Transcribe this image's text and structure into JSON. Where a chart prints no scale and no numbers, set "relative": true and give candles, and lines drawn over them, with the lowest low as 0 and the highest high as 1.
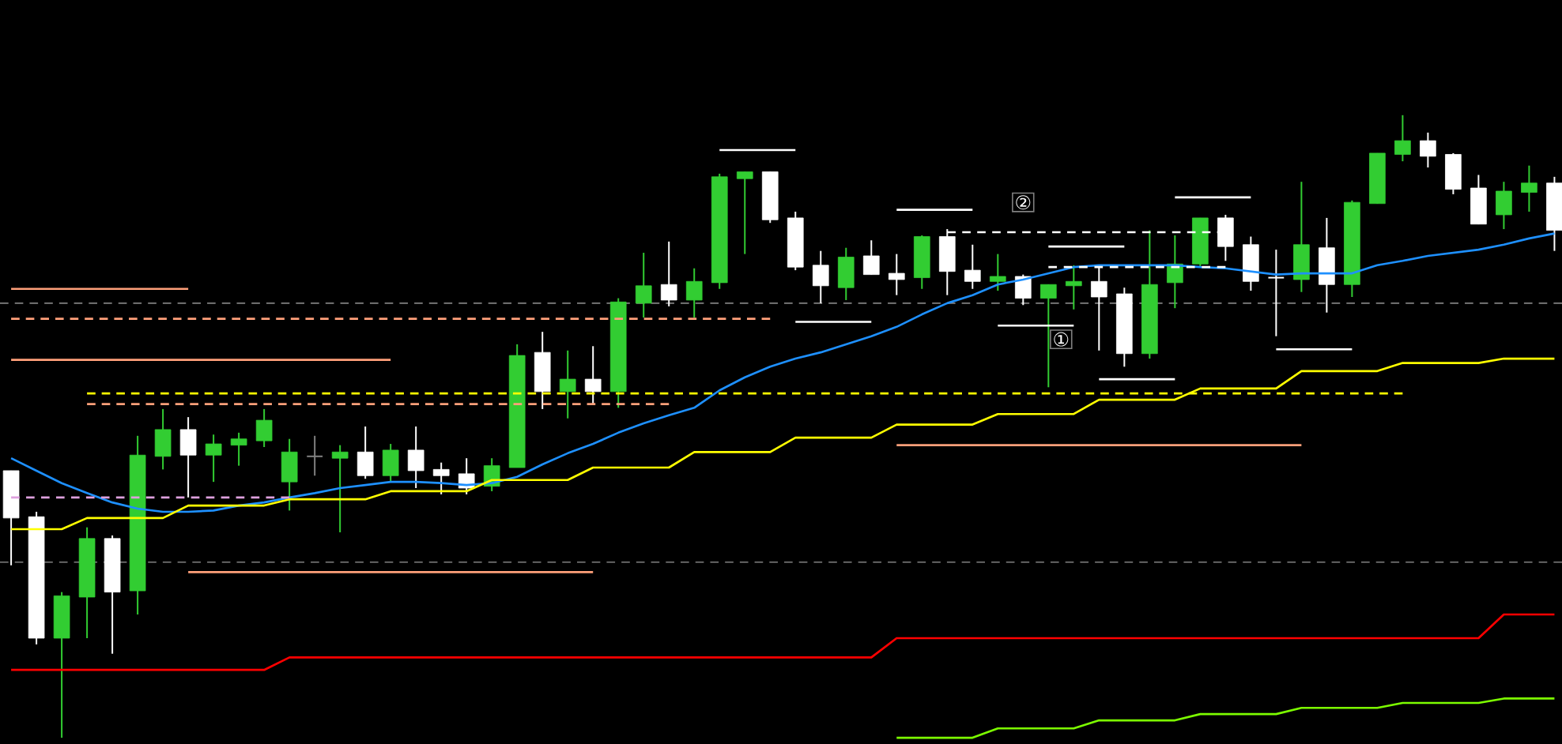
{
  "chart_data": {
    "type": "candlestick",
    "relative": true,
    "categories": [
      null,
      null,
      null,
      null,
      null,
      null,
      null,
      null,
      null,
      null,
      null,
      null,
      null,
      null,
      null,
      null,
      null,
      null,
      null,
      null,
      null,
      null,
      null,
      null,
      null,
      null,
      null,
      null,
      null,
      null,
      null,
      null,
      null,
      null,
      null,
      null,
      null,
      null,
      null,
      null,
      null,
      null,
      null,
      null,
      null,
      null,
      null,
      null,
      null,
      null,
      null,
      null,
      null,
      null,
      null,
      null,
      null,
      null,
      null,
      null,
      null,
      null
    ],
    "ohlc": [
      [
        0.429,
        0.429,
        0.277,
        0.353
      ],
      [
        0.355,
        0.363,
        0.15,
        0.16
      ],
      [
        0.16,
        0.234,
        0.0,
        0.228
      ],
      [
        0.226,
        0.338,
        0.16,
        0.32
      ],
      [
        0.32,
        0.325,
        0.135,
        0.234
      ],
      [
        0.236,
        0.485,
        0.198,
        0.454
      ],
      [
        0.452,
        0.528,
        0.431,
        0.495
      ],
      [
        0.495,
        0.515,
        0.386,
        0.454
      ],
      [
        0.454,
        0.487,
        0.411,
        0.472
      ],
      [
        0.47,
        0.49,
        0.437,
        0.48
      ],
      [
        0.477,
        0.528,
        0.467,
        0.51
      ],
      [
        0.411,
        0.48,
        0.365,
        0.459
      ],
      [
        0.452,
        0.485,
        0.421,
        0.452
      ],
      [
        0.449,
        0.47,
        0.33,
        0.459
      ],
      [
        0.459,
        0.5,
        0.416,
        0.421
      ],
      [
        0.421,
        0.472,
        0.411,
        0.462
      ],
      [
        0.462,
        0.5,
        0.401,
        0.429
      ],
      [
        0.431,
        0.442,
        0.391,
        0.421
      ],
      [
        0.424,
        0.449,
        0.391,
        0.401
      ],
      [
        0.404,
        0.449,
        0.396,
        0.437
      ],
      [
        0.434,
        0.632,
        0.434,
        0.614
      ],
      [
        0.619,
        0.652,
        0.528,
        0.556
      ],
      [
        0.556,
        0.622,
        0.513,
        0.576
      ],
      [
        0.576,
        0.629,
        0.536,
        0.556
      ],
      [
        0.556,
        0.706,
        0.53,
        0.7
      ],
      [
        0.698,
        0.779,
        0.675,
        0.726
      ],
      [
        0.728,
        0.797,
        0.693,
        0.703
      ],
      [
        0.703,
        0.754,
        0.675,
        0.733
      ],
      [
        0.731,
        0.906,
        0.721,
        0.901
      ],
      [
        0.898,
        0.909,
        0.777,
        0.909
      ],
      [
        0.909,
        0.909,
        0.827,
        0.832
      ],
      [
        0.835,
        0.845,
        0.751,
        0.756
      ],
      [
        0.759,
        0.782,
        0.698,
        0.726
      ],
      [
        0.723,
        0.787,
        0.703,
        0.772
      ],
      [
        0.774,
        0.799,
        0.744,
        0.744
      ],
      [
        0.746,
        0.777,
        0.711,
        0.736
      ],
      [
        0.739,
        0.807,
        0.721,
        0.805
      ],
      [
        0.805,
        0.817,
        0.711,
        0.749
      ],
      [
        0.751,
        0.792,
        0.721,
        0.733
      ],
      [
        0.733,
        0.777,
        0.718,
        0.741
      ],
      [
        0.741,
        0.744,
        0.695,
        0.706
      ],
      [
        0.706,
        0.728,
        0.563,
        0.728
      ],
      [
        0.726,
        0.759,
        0.688,
        0.733
      ],
      [
        0.733,
        0.756,
        0.622,
        0.708
      ],
      [
        0.713,
        0.723,
        0.596,
        0.617
      ],
      [
        0.617,
        0.815,
        0.609,
        0.728
      ],
      [
        0.731,
        0.807,
        0.69,
        0.761
      ],
      [
        0.761,
        0.835,
        0.756,
        0.835
      ],
      [
        0.835,
        0.84,
        0.766,
        0.789
      ],
      [
        0.792,
        0.805,
        0.718,
        0.733
      ],
      [
        0.739,
        0.784,
        0.645,
        0.739
      ],
      [
        0.736,
        0.893,
        0.716,
        0.792
      ],
      [
        0.787,
        0.835,
        0.683,
        0.728
      ],
      [
        0.728,
        0.863,
        0.708,
        0.86
      ],
      [
        0.858,
        0.939,
        0.858,
        0.939
      ],
      [
        0.937,
        1.0,
        0.926,
        0.959
      ],
      [
        0.959,
        0.972,
        0.916,
        0.934
      ],
      [
        0.937,
        0.939,
        0.873,
        0.881
      ],
      [
        0.883,
        0.904,
        0.825,
        0.825
      ],
      [
        0.84,
        0.893,
        0.817,
        0.878
      ],
      [
        0.876,
        0.919,
        0.845,
        0.891
      ],
      [
        0.891,
        0.901,
        0.782,
        0.815
      ]
    ],
    "colors": [
      "#ffffff",
      "#ffffff",
      "#32cd32",
      "#32cd32",
      "#ffffff",
      "#32cd32",
      "#32cd32",
      "#ffffff",
      "#32cd32",
      "#32cd32",
      "#32cd32",
      "#32cd32",
      "#808080",
      "#32cd32",
      "#ffffff",
      "#32cd32",
      "#ffffff",
      "#ffffff",
      "#ffffff",
      "#32cd32",
      "#32cd32",
      "#ffffff",
      "#32cd32",
      "#ffffff",
      "#32cd32",
      "#32cd32",
      "#ffffff",
      "#32cd32",
      "#32cd32",
      "#32cd32",
      "#ffffff",
      "#ffffff",
      "#ffffff",
      "#32cd32",
      "#ffffff",
      "#ffffff",
      "#32cd32",
      "#ffffff",
      "#ffffff",
      "#32cd32",
      "#ffffff",
      "#32cd32",
      "#32cd32",
      "#ffffff",
      "#ffffff",
      "#32cd32",
      "#32cd32",
      "#32cd32",
      "#ffffff",
      "#ffffff",
      "#ffffff",
      "#32cd32",
      "#ffffff",
      "#32cd32",
      "#32cd32",
      "#32cd32",
      "#ffffff",
      "#ffffff",
      "#ffffff",
      "#32cd32",
      "#32cd32",
      "#ffffff"
    ],
    "series": [
      {
        "type": "line",
        "color": "#1e90ff",
        "line_style": "solid",
        "values": [
          0.449,
          0.429,
          0.409,
          0.393,
          0.378,
          0.368,
          0.363,
          0.363,
          0.365,
          0.373,
          0.378,
          0.386,
          0.393,
          0.401,
          0.406,
          0.411,
          0.411,
          0.409,
          0.406,
          0.409,
          0.419,
          0.439,
          0.457,
          0.472,
          0.49,
          0.505,
          0.518,
          0.53,
          0.558,
          0.579,
          0.596,
          0.609,
          0.619,
          0.632,
          0.645,
          0.66,
          0.68,
          0.698,
          0.711,
          0.728,
          0.736,
          0.746,
          0.756,
          0.759,
          0.759,
          0.759,
          0.759,
          0.756,
          0.754,
          0.749,
          0.744,
          0.746,
          0.746,
          0.746,
          0.759,
          0.766,
          0.774,
          0.779,
          0.784,
          0.792,
          0.802,
          0.81
        ]
      },
      {
        "type": "line",
        "color": "#ffff00",
        "line_style": "solid",
        "values": [
          0.335,
          0.335,
          0.335,
          0.353,
          0.353,
          0.353,
          0.353,
          0.373,
          0.373,
          0.373,
          0.373,
          0.383,
          0.383,
          0.383,
          0.383,
          0.396,
          0.396,
          0.396,
          0.396,
          0.414,
          0.414,
          0.414,
          0.414,
          0.434,
          0.434,
          0.434,
          0.434,
          0.459,
          0.459,
          0.459,
          0.459,
          0.482,
          0.482,
          0.482,
          0.482,
          0.503,
          0.503,
          0.503,
          0.503,
          0.52,
          0.52,
          0.52,
          0.52,
          0.543,
          0.543,
          0.543,
          0.543,
          0.561,
          0.561,
          0.561,
          0.561,
          0.589,
          0.589,
          0.589,
          0.589,
          0.602,
          0.602,
          0.602,
          0.602,
          0.609,
          0.609,
          0.609
        ]
      },
      {
        "type": "line",
        "color": "#ff0000",
        "line_style": "solid",
        "values": [
          0.109,
          0.109,
          0.109,
          0.109,
          0.109,
          0.109,
          0.109,
          0.109,
          0.109,
          0.109,
          0.109,
          0.129,
          0.129,
          0.129,
          0.129,
          0.129,
          0.129,
          0.129,
          0.129,
          0.129,
          0.129,
          0.129,
          0.129,
          0.129,
          0.129,
          0.129,
          0.129,
          0.129,
          0.129,
          0.129,
          0.129,
          0.129,
          0.129,
          0.129,
          0.129,
          0.16,
          0.16,
          0.16,
          0.16,
          0.16,
          0.16,
          0.16,
          0.16,
          0.16,
          0.16,
          0.16,
          0.16,
          0.16,
          0.16,
          0.16,
          0.16,
          0.16,
          0.16,
          0.16,
          0.16,
          0.16,
          0.16,
          0.16,
          0.16,
          0.198,
          0.198,
          0.198
        ]
      },
      {
        "type": "line",
        "color": "#7cfc00",
        "line_style": "solid",
        "values": [
          null,
          null,
          null,
          null,
          null,
          null,
          null,
          null,
          null,
          null,
          null,
          null,
          null,
          null,
          null,
          null,
          null,
          null,
          null,
          null,
          null,
          null,
          null,
          null,
          null,
          null,
          null,
          null,
          null,
          null,
          null,
          null,
          null,
          null,
          null,
          0.0,
          0.0,
          0.0,
          0.0,
          0.015,
          0.015,
          0.015,
          0.015,
          0.028,
          0.028,
          0.028,
          0.028,
          0.038,
          0.038,
          0.038,
          0.038,
          0.048,
          0.048,
          0.048,
          0.048,
          0.056,
          0.056,
          0.056,
          0.056,
          0.063,
          0.063,
          0.063
        ]
      },
      {
        "type": "line",
        "color": "#ffa07a",
        "line_style": "solid",
        "values": [
          0.721,
          0.721,
          0.721,
          0.721,
          0.721,
          0.721,
          0.721,
          0.721,
          null,
          null,
          null,
          null,
          null,
          null,
          null,
          null,
          null,
          null,
          null,
          null,
          null,
          null,
          null,
          null,
          null,
          null,
          null,
          null,
          null,
          null,
          null,
          null,
          null,
          null,
          null,
          null,
          null,
          null,
          null,
          null,
          null,
          null,
          null,
          null,
          null,
          null,
          null,
          null,
          null,
          null,
          null,
          null,
          null,
          null,
          null,
          null,
          null,
          null,
          null,
          null,
          null,
          null
        ]
      },
      {
        "type": "line",
        "color": "#ffa07a",
        "line_style": "solid",
        "values": [
          0.607,
          0.607,
          0.607,
          0.607,
          0.607,
          0.607,
          0.607,
          0.607,
          0.607,
          0.607,
          0.607,
          0.607,
          0.607,
          0.607,
          0.607,
          0.607,
          null,
          null,
          null,
          null,
          null,
          null,
          null,
          null,
          null,
          null,
          null,
          null,
          null,
          null,
          null,
          null,
          null,
          null,
          null,
          null,
          null,
          null,
          null,
          null,
          null,
          null,
          null,
          null,
          null,
          null,
          null,
          null,
          null,
          null,
          null,
          null,
          null,
          null,
          null,
          null,
          null,
          null,
          null,
          null,
          null,
          null
        ]
      },
      {
        "type": "line",
        "color": "#ffa07a",
        "line_style": "solid",
        "values": [
          null,
          null,
          null,
          null,
          null,
          null,
          null,
          0.266,
          0.266,
          0.266,
          0.266,
          0.266,
          0.266,
          0.266,
          0.266,
          0.266,
          0.266,
          0.266,
          0.266,
          0.266,
          0.266,
          0.266,
          0.266,
          0.266,
          null,
          null,
          null,
          null,
          null,
          null,
          null,
          null,
          null,
          null,
          null,
          null,
          null,
          null,
          null,
          null,
          null,
          null,
          null,
          null,
          null,
          null,
          null,
          null,
          null,
          null,
          null,
          null,
          null,
          null,
          null,
          null,
          null,
          null,
          null,
          null,
          null,
          null
        ]
      },
      {
        "type": "line",
        "color": "#ffa07a",
        "line_style": "solid",
        "values": [
          null,
          null,
          null,
          null,
          null,
          null,
          null,
          null,
          null,
          null,
          null,
          null,
          null,
          null,
          null,
          null,
          null,
          null,
          null,
          null,
          null,
          null,
          null,
          null,
          null,
          null,
          null,
          null,
          null,
          null,
          null,
          null,
          null,
          null,
          null,
          0.47,
          0.47,
          0.47,
          0.47,
          0.47,
          0.47,
          0.47,
          0.47,
          0.47,
          0.47,
          0.47,
          0.47,
          0.47,
          0.47,
          0.47,
          0.47,
          0.47,
          null,
          null,
          null,
          null,
          null,
          null,
          null,
          null,
          null,
          null
        ]
      },
      {
        "type": "line",
        "color": "#ffffff",
        "line_style": "solid",
        "values": [
          null,
          null,
          null,
          null,
          null,
          null,
          null,
          null,
          null,
          null,
          null,
          null,
          null,
          null,
          null,
          null,
          null,
          null,
          null,
          null,
          null,
          null,
          null,
          null,
          null,
          null,
          null,
          null,
          0.944,
          0.944,
          0.944,
          0.944,
          null,
          null,
          null,
          null,
          null,
          null,
          null,
          null,
          null,
          null,
          null,
          null,
          null,
          null,
          null,
          null,
          null,
          null,
          null,
          null,
          null,
          null,
          null,
          null,
          null,
          null,
          null,
          null,
          null,
          null
        ]
      },
      {
        "type": "line",
        "color": "#ffffff",
        "line_style": "solid",
        "values": [
          null,
          null,
          null,
          null,
          null,
          null,
          null,
          null,
          null,
          null,
          null,
          null,
          null,
          null,
          null,
          null,
          null,
          null,
          null,
          null,
          null,
          null,
          null,
          null,
          null,
          null,
          null,
          null,
          null,
          null,
          null,
          0.668,
          0.668,
          0.668,
          0.668,
          null,
          null,
          null,
          null,
          null,
          null,
          null,
          null,
          null,
          null,
          null,
          null,
          null,
          null,
          null,
          null,
          null,
          null,
          null,
          null,
          null,
          null,
          null,
          null,
          null,
          null,
          null
        ]
      },
      {
        "type": "line",
        "color": "#ffffff",
        "line_style": "solid",
        "values": [
          null,
          null,
          null,
          null,
          null,
          null,
          null,
          null,
          null,
          null,
          null,
          null,
          null,
          null,
          null,
          null,
          null,
          null,
          null,
          null,
          null,
          null,
          null,
          null,
          null,
          null,
          null,
          null,
          null,
          null,
          null,
          null,
          null,
          null,
          null,
          0.848,
          0.848,
          0.848,
          0.848,
          null,
          null,
          null,
          null,
          null,
          null,
          null,
          null,
          null,
          null,
          null,
          null,
          null,
          null,
          null,
          null,
          null,
          null,
          null,
          null,
          null,
          null,
          null
        ]
      },
      {
        "type": "line",
        "color": "#ffffff",
        "line_style": "solid",
        "values": [
          null,
          null,
          null,
          null,
          null,
          null,
          null,
          null,
          null,
          null,
          null,
          null,
          null,
          null,
          null,
          null,
          null,
          null,
          null,
          null,
          null,
          null,
          null,
          null,
          null,
          null,
          null,
          null,
          null,
          null,
          null,
          null,
          null,
          null,
          null,
          null,
          null,
          null,
          null,
          0.662,
          0.662,
          0.662,
          0.662,
          null,
          null,
          null,
          null,
          null,
          null,
          null,
          null,
          null,
          null,
          null,
          null,
          null,
          null,
          null,
          null,
          null,
          null,
          null
        ]
      },
      {
        "type": "line",
        "color": "#ffffff",
        "line_style": "solid",
        "values": [
          null,
          null,
          null,
          null,
          null,
          null,
          null,
          null,
          null,
          null,
          null,
          null,
          null,
          null,
          null,
          null,
          null,
          null,
          null,
          null,
          null,
          null,
          null,
          null,
          null,
          null,
          null,
          null,
          null,
          null,
          null,
          null,
          null,
          null,
          null,
          null,
          null,
          null,
          null,
          null,
          null,
          0.789,
          0.789,
          0.789,
          0.789,
          null,
          null,
          null,
          null,
          null,
          null,
          null,
          null,
          null,
          null,
          null,
          null,
          null,
          null,
          null,
          null,
          null
        ]
      },
      {
        "type": "line",
        "color": "#ffffff",
        "line_style": "solid",
        "values": [
          null,
          null,
          null,
          null,
          null,
          null,
          null,
          null,
          null,
          null,
          null,
          null,
          null,
          null,
          null,
          null,
          null,
          null,
          null,
          null,
          null,
          null,
          null,
          null,
          null,
          null,
          null,
          null,
          null,
          null,
          null,
          null,
          null,
          null,
          null,
          null,
          null,
          null,
          null,
          null,
          null,
          null,
          null,
          0.576,
          0.576,
          0.576,
          0.576,
          null,
          null,
          null,
          null,
          null,
          null,
          null,
          null,
          null,
          null,
          null,
          null,
          null,
          null,
          null
        ]
      },
      {
        "type": "line",
        "color": "#ffffff",
        "line_style": "solid",
        "values": [
          null,
          null,
          null,
          null,
          null,
          null,
          null,
          null,
          null,
          null,
          null,
          null,
          null,
          null,
          null,
          null,
          null,
          null,
          null,
          null,
          null,
          null,
          null,
          null,
          null,
          null,
          null,
          null,
          null,
          null,
          null,
          null,
          null,
          null,
          null,
          null,
          null,
          null,
          null,
          null,
          null,
          null,
          null,
          null,
          null,
          null,
          0.868,
          0.868,
          0.868,
          0.868,
          null,
          null,
          null,
          null,
          null,
          null,
          null,
          null,
          null,
          null,
          null,
          null
        ]
      },
      {
        "type": "line",
        "color": "#ffffff",
        "line_style": "solid",
        "values": [
          null,
          null,
          null,
          null,
          null,
          null,
          null,
          null,
          null,
          null,
          null,
          null,
          null,
          null,
          null,
          null,
          null,
          null,
          null,
          null,
          null,
          null,
          null,
          null,
          null,
          null,
          null,
          null,
          null,
          null,
          null,
          null,
          null,
          null,
          null,
          null,
          null,
          null,
          null,
          null,
          null,
          null,
          null,
          null,
          null,
          null,
          null,
          null,
          null,
          null,
          0.624,
          0.624,
          0.624,
          0.624,
          null,
          null,
          null,
          null,
          null,
          null,
          null,
          null
        ]
      },
      {
        "type": "line",
        "color": "#ffa07a",
        "line_style": "dashed",
        "values": [
          0.673,
          0.673,
          0.673,
          0.673,
          0.673,
          0.673,
          0.673,
          0.673,
          0.673,
          0.673,
          0.673,
          0.673,
          0.673,
          0.673,
          0.673,
          0.673,
          0.673,
          0.673,
          0.673,
          0.673,
          0.673,
          0.673,
          0.673,
          0.673,
          0.673,
          0.673,
          0.673,
          0.673,
          0.673,
          0.673,
          0.673,
          null,
          null,
          null,
          null,
          null,
          null,
          null,
          null,
          null,
          null,
          null,
          null,
          null,
          null,
          null,
          null,
          null,
          null,
          null,
          null,
          null,
          null,
          null,
          null,
          null,
          null,
          null,
          null,
          null,
          null,
          null
        ]
      },
      {
        "type": "line",
        "color": "#ffff00",
        "line_style": "dashed",
        "values": [
          null,
          null,
          null,
          0.553,
          0.553,
          0.553,
          0.553,
          0.553,
          0.553,
          0.553,
          0.553,
          0.553,
          0.553,
          0.553,
          0.553,
          0.553,
          0.553,
          0.553,
          0.553,
          0.553,
          0.553,
          0.553,
          0.553,
          0.553,
          0.553,
          0.553,
          0.553,
          0.553,
          0.553,
          0.553,
          0.553,
          0.553,
          0.553,
          0.553,
          0.553,
          0.553,
          0.553,
          0.553,
          0.553,
          0.553,
          0.553,
          0.553,
          0.553,
          0.553,
          0.553,
          0.553,
          0.553,
          0.553,
          0.553,
          0.553,
          0.553,
          0.553,
          0.553,
          0.553,
          0.553,
          0.553,
          null,
          null,
          null,
          null,
          null,
          null
        ]
      },
      {
        "type": "line",
        "color": "#ffa07a",
        "line_style": "dashed",
        "values": [
          null,
          null,
          null,
          0.536,
          0.536,
          0.536,
          0.536,
          0.536,
          0.536,
          0.536,
          0.536,
          0.536,
          0.536,
          0.536,
          0.536,
          0.536,
          0.536,
          0.536,
          0.536,
          0.536,
          0.536,
          0.536,
          0.536,
          0.536,
          0.536,
          0.536,
          0.536,
          null,
          null,
          null,
          null,
          null,
          null,
          null,
          null,
          null,
          null,
          null,
          null,
          null,
          null,
          null,
          null,
          null,
          null,
          null,
          null,
          null,
          null,
          null,
          null,
          null,
          null,
          null,
          null,
          null,
          null,
          null,
          null,
          null,
          null,
          null
        ]
      },
      {
        "type": "line",
        "color": "#dda0dd",
        "line_style": "dashed",
        "values": [
          0.386,
          0.386,
          0.386,
          0.386,
          0.386,
          0.386,
          0.386,
          0.386,
          0.386,
          0.386,
          0.386,
          0.386,
          null,
          null,
          null,
          null,
          null,
          null,
          null,
          null,
          null,
          null,
          null,
          null,
          null,
          null,
          null,
          null,
          null,
          null,
          null,
          null,
          null,
          null,
          null,
          null,
          null,
          null,
          null,
          null,
          null,
          null,
          null,
          null,
          null,
          null,
          null,
          null,
          null,
          null,
          null,
          null,
          null,
          null,
          null,
          null,
          null,
          null,
          null,
          null,
          null,
          null
        ]
      },
      {
        "type": "line",
        "color": "#ffffff",
        "line_style": "dashed",
        "values": [
          null,
          null,
          null,
          null,
          null,
          null,
          null,
          null,
          null,
          null,
          null,
          null,
          null,
          null,
          null,
          null,
          null,
          null,
          null,
          null,
          null,
          null,
          null,
          null,
          null,
          null,
          null,
          null,
          null,
          null,
          null,
          null,
          null,
          null,
          null,
          null,
          null,
          0.812,
          0.812,
          0.812,
          0.812,
          0.812,
          0.812,
          0.812,
          0.812,
          0.812,
          0.812,
          0.812,
          0.812,
          null,
          null,
          null,
          null,
          null,
          null,
          null,
          null,
          null,
          null,
          null,
          null,
          null
        ]
      },
      {
        "type": "line",
        "color": "#ffffff",
        "line_style": "dashed",
        "values": [
          null,
          null,
          null,
          null,
          null,
          null,
          null,
          null,
          null,
          null,
          null,
          null,
          null,
          null,
          null,
          null,
          null,
          null,
          null,
          null,
          null,
          null,
          null,
          null,
          null,
          null,
          null,
          null,
          null,
          null,
          null,
          null,
          null,
          null,
          null,
          null,
          null,
          null,
          null,
          null,
          null,
          0.756,
          0.756,
          0.756,
          0.756,
          0.756,
          0.756,
          0.756,
          0.756,
          null,
          null,
          null,
          null,
          null,
          null,
          null,
          null,
          null,
          null,
          null,
          null,
          null
        ]
      }
    ],
    "ref_lines": [
      {
        "axis": "y",
        "value": 0.698,
        "color": "#808080",
        "line_style": "dashed"
      },
      {
        "axis": "y",
        "value": 0.282,
        "color": "#808080",
        "line_style": "dashed"
      }
    ],
    "annotations": [
      "①",
      "②"
    ]
  }
}
